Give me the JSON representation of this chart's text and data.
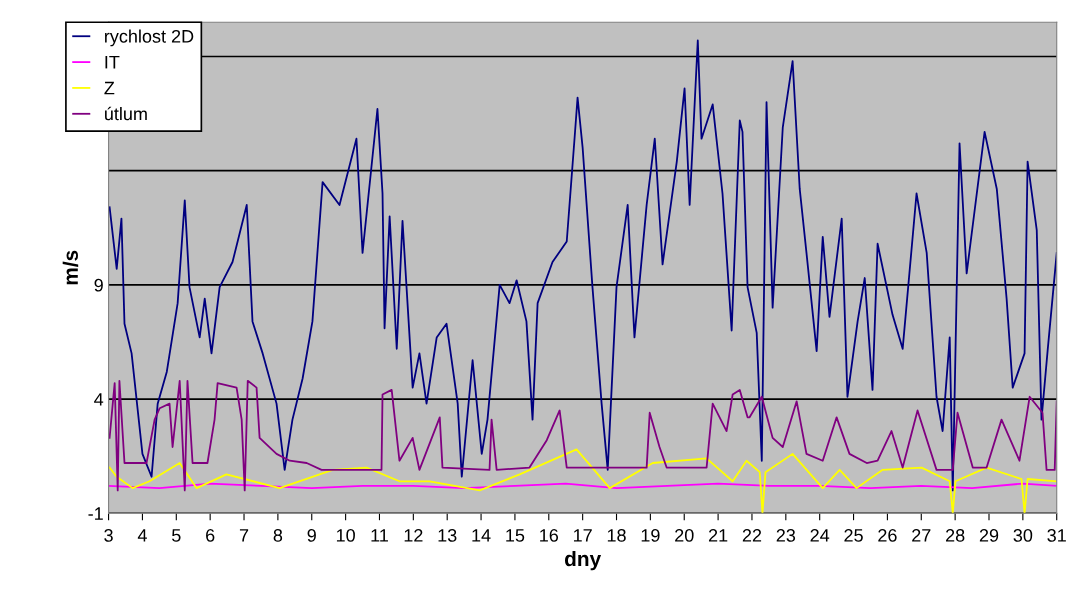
{
  "chart_data": {
    "type": "line",
    "xlabel": "dny",
    "ylabel": "m/s",
    "xlim": [
      3,
      31
    ],
    "xticks": [
      3,
      4,
      5,
      6,
      7,
      8,
      9,
      10,
      11,
      12,
      13,
      14,
      15,
      16,
      17,
      18,
      19,
      20,
      21,
      22,
      23,
      24,
      25,
      26,
      27,
      28,
      29,
      30,
      31
    ],
    "ylim": [
      -1,
      20.5
    ],
    "yticks": [
      -1,
      4,
      9,
      {
        "value": 14,
        "label": null
      },
      {
        "value": 19,
        "label": null
      }
    ],
    "grid": "y",
    "legend": "top left",
    "line_style": "solid",
    "marker": "none",
    "series": [
      {
        "name": "rychlost 2D",
        "color": "#000080",
        "x": [
          3.03,
          3.24,
          3.38,
          3.47,
          3.68,
          4.0,
          4.27,
          4.45,
          4.72,
          5.04,
          5.25,
          5.39,
          5.69,
          5.84,
          6.04,
          6.28,
          6.66,
          7.08,
          7.25,
          7.55,
          7.96,
          8.2,
          8.43,
          8.73,
          9.02,
          9.32,
          9.82,
          10.32,
          10.5,
          10.94,
          11.09,
          11.15,
          11.3,
          11.51,
          11.68,
          11.98,
          12.18,
          12.39,
          12.69,
          12.98,
          13.31,
          13.43,
          13.75,
          14.02,
          14.19,
          14.55,
          14.84,
          15.05,
          15.34,
          15.52,
          15.67,
          16.11,
          16.53,
          16.76,
          16.85,
          17.0,
          17.29,
          17.56,
          17.74,
          18.0,
          18.33,
          18.53,
          18.89,
          19.13,
          19.36,
          19.78,
          20.01,
          20.16,
          20.4,
          20.51,
          20.84,
          21.13,
          21.4,
          21.64,
          21.72,
          21.87,
          22.14,
          22.29,
          22.43,
          22.61,
          22.91,
          23.2,
          23.41,
          23.61,
          23.91,
          24.09,
          24.29,
          24.65,
          24.82,
          25.12,
          25.33,
          25.56,
          25.71,
          26.15,
          26.45,
          26.86,
          27.16,
          27.45,
          27.63,
          27.84,
          27.93,
          28.13,
          28.34,
          28.87,
          29.23,
          29.52,
          29.7,
          30.05,
          30.14,
          30.41,
          30.55,
          30.73,
          31.0
        ],
        "values": [
          12.4,
          9.7,
          11.9,
          7.3,
          6.0,
          1.6,
          0.6,
          3.8,
          5.2,
          8.2,
          12.7,
          8.9,
          6.7,
          8.4,
          6.0,
          8.9,
          10.0,
          12.5,
          7.4,
          6.0,
          3.8,
          0.9,
          3.1,
          4.9,
          7.4,
          13.5,
          12.5,
          15.4,
          10.4,
          16.7,
          13.0,
          7.1,
          12.0,
          6.2,
          11.8,
          4.5,
          6.0,
          3.8,
          6.7,
          7.3,
          3.8,
          0.6,
          5.7,
          1.6,
          3.1,
          9.0,
          8.2,
          9.2,
          7.4,
          3.1,
          8.2,
          10.0,
          10.9,
          15.4,
          17.2,
          15.0,
          8.9,
          3.8,
          0.9,
          8.9,
          12.5,
          6.7,
          12.5,
          15.4,
          9.9,
          14.4,
          17.6,
          12.5,
          19.7,
          15.4,
          16.9,
          13.0,
          7.0,
          16.2,
          15.7,
          8.9,
          6.9,
          1.3,
          17.0,
          8.0,
          15.9,
          18.8,
          13.2,
          10.4,
          6.1,
          11.1,
          7.6,
          11.9,
          4.1,
          7.4,
          9.3,
          4.4,
          10.8,
          7.7,
          6.2,
          13.0,
          10.4,
          4.1,
          2.6,
          6.7,
          0.0,
          15.2,
          9.5,
          15.7,
          13.2,
          8.4,
          4.5,
          6.0,
          14.4,
          11.4,
          3.1,
          6.1,
          10.4
        ]
      },
      {
        "name": "IT",
        "color": "#ff00ff",
        "x": [
          3,
          4.5,
          6,
          7.5,
          9,
          10.5,
          12,
          13.5,
          15,
          16.5,
          18,
          19.5,
          21,
          22.5,
          24,
          25.5,
          27,
          28.5,
          30,
          31
        ],
        "values": [
          0.2,
          0.1,
          0.3,
          0.2,
          0.1,
          0.2,
          0.2,
          0.1,
          0.2,
          0.3,
          0.1,
          0.2,
          0.3,
          0.2,
          0.2,
          0.1,
          0.2,
          0.1,
          0.3,
          0.2
        ]
      },
      {
        "name": "Z",
        "color": "#ffff00",
        "x": [
          3.03,
          3.24,
          3.71,
          4.21,
          5.1,
          5.6,
          6.48,
          8.05,
          9.62,
          10.62,
          11.59,
          12.48,
          13.96,
          15.14,
          16.82,
          17.8,
          19.07,
          20.66,
          21.43,
          21.84,
          22.23,
          22.31,
          22.4,
          23.2,
          24.09,
          24.59,
          25.09,
          25.86,
          27.01,
          27.84,
          27.93,
          28.01,
          28.93,
          29.96,
          30.05,
          30.14,
          31.0
        ],
        "values": [
          1.0,
          0.6,
          0.1,
          0.4,
          1.2,
          0.1,
          0.7,
          0.1,
          0.9,
          1.0,
          0.4,
          0.4,
          0.0,
          0.7,
          1.8,
          0.1,
          1.2,
          1.4,
          0.4,
          1.3,
          0.8,
          -1.0,
          0.8,
          1.6,
          0.1,
          0.9,
          0.1,
          0.9,
          1.0,
          0.4,
          -1.0,
          0.4,
          1.0,
          0.5,
          -1.0,
          0.5,
          0.4
        ]
      },
      {
        "name": "útlum",
        "color": "#800080",
        "x": [
          3.03,
          3.18,
          3.27,
          3.32,
          3.47,
          4.12,
          4.36,
          4.51,
          4.8,
          4.89,
          5.1,
          5.25,
          5.33,
          5.48,
          5.92,
          6.13,
          6.22,
          6.78,
          6.93,
          7.02,
          7.11,
          7.37,
          7.46,
          7.96,
          8.35,
          8.85,
          9.29,
          11.06,
          11.09,
          11.36,
          11.59,
          11.98,
          12.18,
          12.78,
          12.86,
          14.25,
          14.31,
          14.46,
          15.43,
          15.94,
          16.32,
          16.53,
          18.89,
          18.98,
          19.27,
          19.48,
          20.66,
          20.84,
          21.25,
          21.43,
          21.64,
          21.87,
          21.93,
          22.29,
          22.61,
          22.91,
          23.32,
          23.61,
          24.09,
          24.5,
          24.88,
          25.39,
          25.71,
          26.12,
          26.45,
          26.89,
          27.45,
          27.93,
          28.07,
          28.52,
          28.93,
          29.37,
          29.9,
          30.2,
          30.58,
          30.7,
          30.94,
          31.0
        ],
        "values": [
          2.3,
          4.7,
          0.0,
          4.8,
          1.2,
          1.2,
          3.1,
          3.6,
          3.8,
          1.9,
          4.8,
          0.0,
          4.8,
          1.2,
          1.2,
          3.1,
          4.7,
          4.5,
          3.1,
          0.0,
          4.8,
          4.5,
          2.3,
          1.6,
          1.3,
          1.2,
          0.9,
          0.9,
          4.2,
          4.4,
          1.3,
          2.3,
          0.9,
          3.2,
          1.0,
          0.9,
          3.1,
          0.9,
          1.0,
          2.2,
          3.5,
          1.0,
          1.0,
          3.4,
          1.9,
          1.0,
          1.0,
          3.8,
          2.6,
          4.2,
          4.4,
          3.2,
          3.2,
          4.1,
          2.3,
          1.9,
          3.9,
          1.6,
          1.3,
          3.2,
          1.6,
          1.2,
          1.3,
          2.6,
          1.0,
          3.5,
          0.9,
          0.9,
          3.4,
          1.0,
          1.0,
          3.1,
          1.3,
          4.1,
          3.4,
          0.9,
          0.9,
          3.9
        ]
      }
    ]
  }
}
